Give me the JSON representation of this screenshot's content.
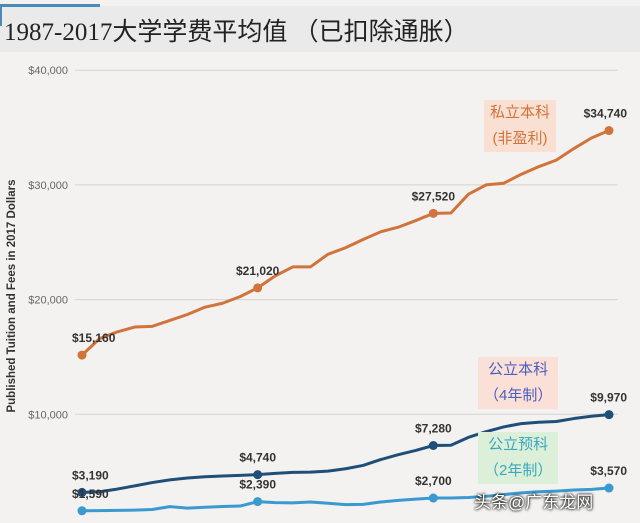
{
  "title": "1987-2017大学学费平均值 （已扣除通胀）",
  "watermark": "头条@广东龙网",
  "chart_data": {
    "type": "line",
    "title": "1987-2017大学学费平均值 （已扣除通胀）",
    "ylabel": "Published Tuition and Fees in 2017 Dollars",
    "xlabel": "",
    "ylim": [
      0,
      40000
    ],
    "xlim": [
      1987,
      2017
    ],
    "yticks": [
      {
        "v": 10000,
        "label": "$10,000"
      },
      {
        "v": 20000,
        "label": "$20,000"
      },
      {
        "v": 30000,
        "label": "$30,000"
      },
      {
        "v": 40000,
        "label": "$40,000"
      }
    ],
    "grid": true,
    "x": [
      1987,
      1988,
      1989,
      1990,
      1991,
      1992,
      1993,
      1994,
      1995,
      1996,
      1997,
      1998,
      1999,
      2000,
      2001,
      2002,
      2003,
      2004,
      2005,
      2006,
      2007,
      2008,
      2009,
      2010,
      2011,
      2012,
      2013,
      2014,
      2015,
      2016,
      2017
    ],
    "series": [
      {
        "name": "私立本科(非盈利)",
        "label_lines": [
          "私立本科",
          "(非盈利)"
        ],
        "color": "#d0743c",
        "label_bg": "#f9e0d2",
        "values": [
          15160,
          16600,
          17180,
          17610,
          17670,
          18180,
          18700,
          19340,
          19680,
          20260,
          21020,
          22070,
          22850,
          22850,
          23950,
          24520,
          25240,
          25910,
          26310,
          26890,
          27520,
          27550,
          29190,
          30000,
          30140,
          30920,
          31590,
          32160,
          33170,
          34090,
          34740
        ],
        "marked": [
          {
            "year": 1987,
            "label": "$15,160"
          },
          {
            "year": 1997,
            "label": "$21,020"
          },
          {
            "year": 2007,
            "label": "$27,520"
          },
          {
            "year": 2017,
            "label": "$34,740"
          }
        ]
      },
      {
        "name": "公立本科(4年制)",
        "label_lines": [
          "公立本科",
          "（4年制）"
        ],
        "color": "#1f4e79",
        "text_color": "#4a5fc0",
        "label_bg": "#fbe0d8",
        "values": [
          3190,
          3250,
          3480,
          3760,
          4050,
          4280,
          4450,
          4560,
          4620,
          4680,
          4740,
          4850,
          4940,
          4960,
          5050,
          5250,
          5540,
          6050,
          6480,
          6850,
          7280,
          7300,
          7990,
          8480,
          8900,
          9190,
          9310,
          9370,
          9630,
          9830,
          9970
        ],
        "marked": [
          {
            "year": 1987,
            "label": "$3,190"
          },
          {
            "year": 1997,
            "label": "$4,740"
          },
          {
            "year": 2007,
            "label": "$7,280"
          },
          {
            "year": 2017,
            "label": "$9,970"
          }
        ]
      },
      {
        "name": "公立预科(2年制)",
        "label_lines": [
          "公立预科",
          "（2年制）"
        ],
        "color": "#3a9ad0",
        "text_color": "#3aa8c0",
        "label_bg": "#dcefd8",
        "values": [
          1590,
          1600,
          1620,
          1650,
          1700,
          1950,
          1820,
          1900,
          1960,
          2000,
          2390,
          2300,
          2280,
          2350,
          2250,
          2130,
          2150,
          2350,
          2500,
          2600,
          2700,
          2700,
          2750,
          2850,
          3000,
          3150,
          3250,
          3300,
          3400,
          3450,
          3570
        ],
        "marked": [
          {
            "year": 1987,
            "label": "$1,590"
          },
          {
            "year": 1997,
            "label": "$2,390"
          },
          {
            "year": 2007,
            "label": "$2,700"
          },
          {
            "year": 2017,
            "label": "$3,570"
          }
        ]
      }
    ]
  }
}
